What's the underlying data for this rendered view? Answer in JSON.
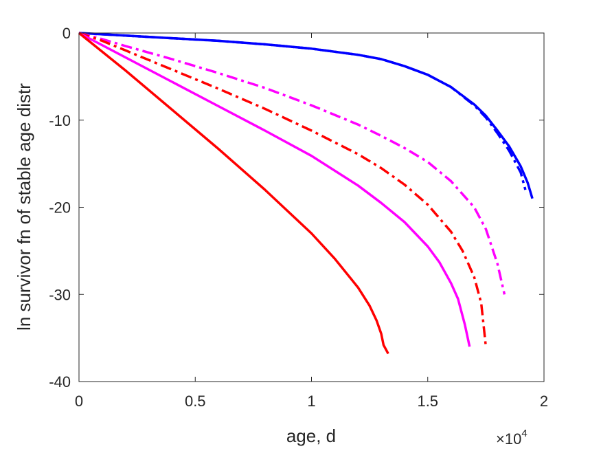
{
  "chart_data": {
    "type": "line",
    "xlabel": "age, d",
    "ylabel": "ln survivor fn of stable age distr",
    "xlim": [
      0,
      20000
    ],
    "ylim": [
      -40,
      0
    ],
    "x_ticks": [
      {
        "value": 0,
        "label": "0"
      },
      {
        "value": 5000,
        "label": "0.5"
      },
      {
        "value": 10000,
        "label": "1"
      },
      {
        "value": 15000,
        "label": "1.5"
      },
      {
        "value": 20000,
        "label": "2"
      }
    ],
    "x_multiplier": {
      "base": "×10",
      "exponent": "4"
    },
    "y_ticks": [
      {
        "value": 0,
        "label": "0"
      },
      {
        "value": -10,
        "label": "-10"
      },
      {
        "value": -20,
        "label": "-20"
      },
      {
        "value": -30,
        "label": "-30"
      },
      {
        "value": -40,
        "label": "-40"
      }
    ],
    "grid": false,
    "legend": "none",
    "series": [
      {
        "color": "#0000ff",
        "style": "solid",
        "x": [
          0,
          2000,
          4000,
          6000,
          8000,
          10000,
          12000,
          13000,
          14000,
          15000,
          16000,
          17000,
          17500,
          18000,
          18500,
          19000,
          19300,
          19500
        ],
        "y": [
          0,
          -0.3,
          -0.6,
          -0.9,
          -1.3,
          -1.8,
          -2.5,
          -3.0,
          -3.8,
          -4.8,
          -6.2,
          -8.2,
          -9.5,
          -11.2,
          -13.0,
          -15.3,
          -17.2,
          -19.0
        ]
      },
      {
        "color": "#0000ff",
        "style": "dashdot",
        "x": [
          0,
          2000,
          4000,
          6000,
          8000,
          10000,
          12000,
          13000,
          14000,
          15000,
          16000,
          17000,
          17500,
          18000,
          18500,
          19000,
          19200
        ],
        "y": [
          0,
          -0.3,
          -0.6,
          -0.9,
          -1.3,
          -1.8,
          -2.5,
          -3.0,
          -3.8,
          -4.8,
          -6.2,
          -8.3,
          -9.7,
          -11.5,
          -13.5,
          -16.0,
          -18.0
        ]
      },
      {
        "color": "#ff00ff",
        "style": "dashdot",
        "x": [
          0,
          1000,
          2000,
          4000,
          6000,
          8000,
          10000,
          12000,
          13000,
          14000,
          15000,
          16000,
          17000,
          17500,
          18000,
          18300
        ],
        "y": [
          0,
          -0.7,
          -1.5,
          -3.0,
          -4.6,
          -6.3,
          -8.3,
          -10.5,
          -11.8,
          -13.2,
          -14.8,
          -17.0,
          -20.0,
          -22.5,
          -26.5,
          -30.0
        ]
      },
      {
        "color": "#ff0000",
        "style": "dashdot",
        "x": [
          0,
          1000,
          2000,
          4000,
          6000,
          8000,
          10000,
          12000,
          13000,
          14000,
          15000,
          16000,
          16500,
          17000,
          17300,
          17500
        ],
        "y": [
          0,
          -0.9,
          -2.0,
          -4.2,
          -6.4,
          -8.7,
          -11.2,
          -13.9,
          -15.5,
          -17.4,
          -19.7,
          -22.8,
          -25.0,
          -28.0,
          -31.0,
          -36.0
        ]
      },
      {
        "color": "#ff00ff",
        "style": "solid",
        "x": [
          0,
          2000,
          4000,
          6000,
          8000,
          10000,
          12000,
          13000,
          14000,
          15000,
          15500,
          16000,
          16300,
          16600,
          16800
        ],
        "y": [
          0,
          -2.8,
          -5.6,
          -8.4,
          -11.2,
          -14.1,
          -17.5,
          -19.5,
          -21.7,
          -24.5,
          -26.3,
          -28.7,
          -30.5,
          -33.5,
          -36.0
        ]
      },
      {
        "color": "#ff0000",
        "style": "solid",
        "x": [
          0,
          2000,
          4000,
          6000,
          8000,
          10000,
          11000,
          12000,
          12500,
          12800,
          13000,
          13100,
          13300
        ],
        "y": [
          0,
          -4.3,
          -8.8,
          -13.3,
          -18.0,
          -23.0,
          -25.9,
          -29.2,
          -31.3,
          -33.0,
          -34.5,
          -35.8,
          -36.8
        ]
      }
    ]
  }
}
